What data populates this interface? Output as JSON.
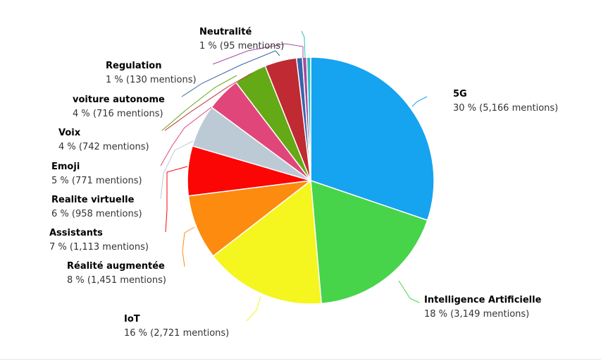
{
  "chart_data": {
    "type": "pie",
    "title": "",
    "value_format": "{pct} % ({count} mentions)",
    "series": [
      {
        "name": "5G",
        "value": 5166,
        "percent_label": "30 %",
        "count_label": "5,166 mentions",
        "label_text": "30 % (5,166 mentions)",
        "color": "#16a3f0"
      },
      {
        "name": "Intelligence Artificielle",
        "value": 3149,
        "percent_label": "18 %",
        "count_label": "3,149 mentions",
        "label_text": "18 % (3,149 mentions)",
        "color": "#47d44a"
      },
      {
        "name": "IoT",
        "value": 2721,
        "percent_label": "16 %",
        "count_label": "2,721 mentions",
        "label_text": "16 % (2,721 mentions)",
        "color": "#f5f51f"
      },
      {
        "name": "Réalité augmentée",
        "value": 1451,
        "percent_label": "8 %",
        "count_label": "1,451 mentions",
        "label_text": "8 % (1,451 mentions)",
        "color": "#fc8b0f"
      },
      {
        "name": "Assistants",
        "value": 1113,
        "percent_label": "7 %",
        "count_label": "1,113 mentions",
        "label_text": "7 % (1,113 mentions)",
        "color": "#fc0505"
      },
      {
        "name": "Realite virtuelle",
        "value": 958,
        "percent_label": "6 %",
        "count_label": "958 mentions",
        "label_text": "6 % (958 mentions)",
        "color": "#bccad6"
      },
      {
        "name": "Emoji",
        "value": 771,
        "percent_label": "5 %",
        "count_label": "771 mentions",
        "label_text": "5 % (771 mentions)",
        "color": "#e1467a"
      },
      {
        "name": "Voix",
        "value": 742,
        "percent_label": "4 %",
        "count_label": "742 mentions",
        "label_text": "4 % (742 mentions)",
        "color": "#64a916"
      },
      {
        "name": "voiture autonome",
        "value": 716,
        "percent_label": "4 %",
        "count_label": "716 mentions",
        "label_text": "4 % (716 mentions)",
        "color": "#bf2a33"
      },
      {
        "name": "Regulation",
        "value": 130,
        "percent_label": "1 %",
        "count_label": "130 mentions",
        "label_text": "1 % (130 mentions)",
        "color": "#3a64a8"
      },
      {
        "name": "Neutralité",
        "value": 95,
        "percent_label": "1 %",
        "count_label": "95 mentions",
        "label_text": "1 % (95 mentions)",
        "color": "#a54ca0"
      },
      {
        "name": "",
        "value": 90,
        "percent_label": "",
        "count_label": "",
        "label_text": "",
        "color": "#2ebfbf"
      }
    ]
  }
}
